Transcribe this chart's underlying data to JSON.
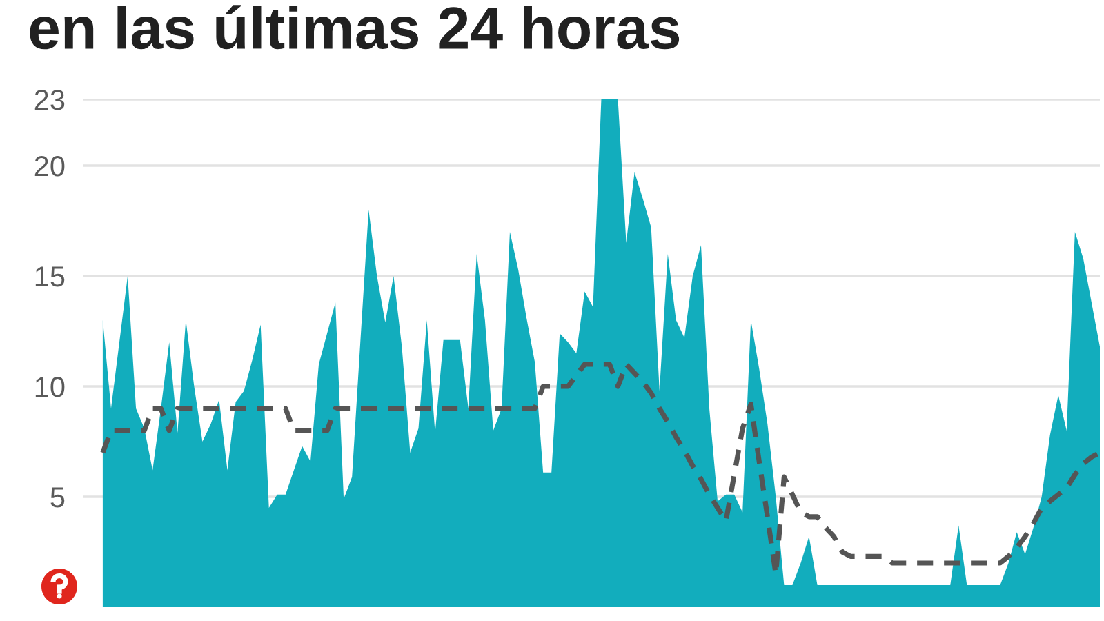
{
  "chart_data": {
    "type": "area",
    "title": "en las últimas 24 horas",
    "categories": [
      null,
      null,
      null,
      null,
      null,
      null,
      null,
      null,
      null,
      null,
      null,
      null,
      null,
      null,
      null,
      null,
      null,
      null,
      null,
      null,
      null,
      null,
      null,
      null,
      null,
      null,
      null,
      null,
      null,
      null,
      null,
      null,
      null,
      null,
      null,
      null,
      null,
      null,
      null,
      null,
      null,
      null,
      null,
      null,
      null,
      null,
      null,
      null,
      null,
      null,
      null,
      null,
      null,
      null,
      null,
      null,
      null,
      null,
      null,
      null,
      null,
      null,
      null,
      null,
      null,
      null,
      null,
      null,
      null,
      null,
      null,
      null,
      null,
      null,
      null,
      null,
      null,
      null,
      null,
      null,
      null,
      null,
      null,
      null,
      null,
      null,
      null,
      null,
      null,
      null,
      null,
      null,
      null,
      null,
      null,
      null,
      null,
      null,
      null,
      null,
      null,
      null,
      null,
      null,
      null,
      null,
      null,
      null,
      null,
      null,
      null,
      null,
      null,
      null,
      null,
      null,
      null,
      null,
      null,
      null,
      null
    ],
    "series": [
      {
        "color": "#12adbd",
        "values": [
          13,
          9,
          12,
          15,
          9,
          8.1,
          6.2,
          9,
          12,
          7.9,
          13,
          10,
          7.5,
          8.3,
          9.4,
          6.2,
          9.3,
          9.8,
          11.2,
          12.8,
          4.5,
          5.1,
          5.1,
          6.2,
          7.3,
          6.6,
          11,
          12.4,
          13.8,
          4.9,
          5.9,
          12,
          18,
          15,
          12.9,
          15,
          11.8,
          7,
          8.1,
          13,
          7.9,
          12.1,
          12.1,
          12.1,
          9,
          16,
          13,
          8,
          9,
          17,
          15.3,
          13.1,
          11.1,
          6.1,
          6.1,
          12.4,
          12,
          11.5,
          14.3,
          13.6,
          23,
          23,
          23,
          16.5,
          19.7,
          18.5,
          17.2,
          9.8,
          16,
          13,
          12.2,
          15,
          16.4,
          9,
          4.8,
          5.1,
          5.1,
          4.3,
          13,
          10.8,
          8.3,
          5,
          1,
          1,
          2,
          3.2,
          1,
          1,
          1,
          1,
          1,
          1,
          1,
          1,
          1,
          1,
          1,
          1,
          1,
          1,
          1,
          1,
          1,
          3.7,
          1,
          1,
          1,
          1,
          1,
          2,
          3.4,
          2.4,
          3.6,
          5,
          7.8,
          9.6,
          8,
          17,
          15.8,
          13.8,
          11.8
        ]
      },
      {
        "type": "line",
        "color": "#555555",
        "line_style": "dashed",
        "values": [
          7,
          8,
          8,
          8,
          8,
          8,
          9,
          9,
          8,
          9,
          9,
          9,
          9,
          9,
          9,
          9,
          9,
          9,
          9,
          9,
          9,
          9,
          9,
          8,
          8,
          8,
          8,
          8,
          9,
          9,
          9,
          9,
          9,
          9,
          9,
          9,
          9,
          9,
          9,
          9,
          9,
          9,
          9,
          9,
          9,
          9,
          9,
          9,
          9,
          9,
          9,
          9,
          9,
          10,
          10,
          10,
          10,
          10.5,
          11,
          11,
          11,
          11,
          10,
          11,
          10.6,
          10.2,
          9.7,
          9,
          8.4,
          7.7,
          7.1,
          6.4,
          5.8,
          5.1,
          4.5,
          3.9,
          6,
          8.1,
          9.2,
          6.6,
          4.1,
          1.5,
          5.9,
          5.1,
          4.3,
          4.1,
          4.1,
          3.6,
          3.2,
          2.5,
          2.3,
          2.3,
          2.3,
          2.3,
          2.3,
          2,
          2,
          2,
          2,
          2,
          2,
          2,
          2,
          2,
          2,
          2,
          2,
          2,
          2,
          2.3,
          2.7,
          3.2,
          3.8,
          4.5,
          4.8,
          5.1,
          5.4,
          6,
          6.5,
          6.8,
          7
        ]
      }
    ],
    "ylim": [
      0,
      23
    ],
    "yticks": [
      5,
      10,
      15,
      20,
      23
    ],
    "grid": "y"
  }
}
